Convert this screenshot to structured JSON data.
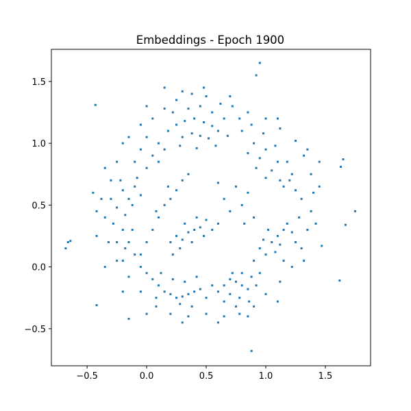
{
  "chart_data": {
    "type": "scatter",
    "title": "Embeddings - Epoch 1900",
    "xlabel": "",
    "ylabel": "",
    "xlim": [
      -0.8,
      1.88
    ],
    "ylim": [
      -0.8,
      1.76
    ],
    "xticks": [
      -0.5,
      0.0,
      0.5,
      1.0,
      1.5
    ],
    "xtick_labels": [
      "−0.5",
      "0.0",
      "0.5",
      "1.0",
      "1.5"
    ],
    "yticks": [
      -0.5,
      0.0,
      0.5,
      1.0,
      1.5
    ],
    "ytick_labels": [
      "−0.5",
      "0.0",
      "0.5",
      "1.0",
      "1.5"
    ],
    "grid": false,
    "legend": "none",
    "series": [
      {
        "color": "#1f77b4",
        "points": [
          [
            0.25,
            1.15
          ],
          [
            0.32,
            1.18
          ],
          [
            0.4,
            1.2
          ],
          [
            0.48,
            1.17
          ],
          [
            0.55,
            1.14
          ],
          [
            0.3,
            1.05
          ],
          [
            0.38,
            1.08
          ],
          [
            0.45,
            1.06
          ],
          [
            0.52,
            1.04
          ],
          [
            0.6,
            1.1
          ],
          [
            0.22,
            1.25
          ],
          [
            0.35,
            1.28
          ],
          [
            0.45,
            1.3
          ],
          [
            0.55,
            1.25
          ],
          [
            0.65,
            1.2
          ],
          [
            0.28,
            0.98
          ],
          [
            0.42,
            0.96
          ],
          [
            0.58,
            0.98
          ],
          [
            0.68,
            1.06
          ],
          [
            0.18,
            1.1
          ],
          [
            0.8,
            1.1
          ],
          [
            0.9,
            1.0
          ],
          [
            1.0,
            0.95
          ],
          [
            1.1,
            0.85
          ],
          [
            1.2,
            0.7
          ],
          [
            0.85,
            0.92
          ],
          [
            0.95,
            0.88
          ],
          [
            1.05,
            0.78
          ],
          [
            1.15,
            0.65
          ],
          [
            0.88,
            1.15
          ],
          [
            0.98,
            1.08
          ],
          [
            1.08,
            0.98
          ],
          [
            1.18,
            0.85
          ],
          [
            1.25,
            0.62
          ],
          [
            1.0,
            0.72
          ],
          [
            0.92,
            0.8
          ],
          [
            1.12,
            0.7
          ],
          [
            0.78,
            1.2
          ],
          [
            1.22,
            0.75
          ],
          [
            1.3,
            0.55
          ],
          [
            -0.2,
            0.62
          ],
          [
            -0.15,
            0.55
          ],
          [
            -0.1,
            0.65
          ],
          [
            -0.05,
            0.58
          ],
          [
            -0.25,
            0.48
          ],
          [
            -0.18,
            0.42
          ],
          [
            -0.12,
            0.5
          ],
          [
            -0.08,
            0.72
          ],
          [
            -0.22,
            0.7
          ],
          [
            -0.3,
            0.55
          ],
          [
            0.0,
            0.8
          ],
          [
            0.05,
            0.9
          ],
          [
            0.1,
            1.0
          ],
          [
            0.0,
            1.05
          ],
          [
            -0.05,
            0.95
          ],
          [
            0.1,
            0.85
          ],
          [
            0.15,
            0.95
          ],
          [
            -0.1,
            0.85
          ],
          [
            0.2,
            0.2
          ],
          [
            0.25,
            0.25
          ],
          [
            0.3,
            0.22
          ],
          [
            0.35,
            0.28
          ],
          [
            0.4,
            0.3
          ],
          [
            0.45,
            0.32
          ],
          [
            0.28,
            0.15
          ],
          [
            0.38,
            0.2
          ],
          [
            0.5,
            0.38
          ],
          [
            0.55,
            0.3
          ],
          [
            0.32,
            0.35
          ],
          [
            0.42,
            0.4
          ],
          [
            0.22,
            0.1
          ],
          [
            0.48,
            0.25
          ],
          [
            0.6,
            0.35
          ],
          [
            0.05,
            0.3
          ],
          [
            0.1,
            0.4
          ],
          [
            0.15,
            0.5
          ],
          [
            0.2,
            0.55
          ],
          [
            0.25,
            0.62
          ],
          [
            0.0,
            0.2
          ],
          [
            -0.05,
            0.1
          ],
          [
            0.08,
            0.45
          ],
          [
            0.3,
            0.7
          ],
          [
            0.35,
            0.75
          ],
          [
            0.18,
            0.65
          ],
          [
            0.0,
            -0.05
          ],
          [
            0.05,
            -0.1
          ],
          [
            0.1,
            -0.15
          ],
          [
            0.15,
            -0.2
          ],
          [
            0.2,
            -0.22
          ],
          [
            0.25,
            -0.25
          ],
          [
            0.3,
            -0.24
          ],
          [
            0.35,
            -0.22
          ],
          [
            0.4,
            -0.2
          ],
          [
            0.45,
            -0.18
          ],
          [
            0.12,
            -0.05
          ],
          [
            0.22,
            -0.1
          ],
          [
            0.32,
            -0.12
          ],
          [
            0.42,
            -0.08
          ],
          [
            0.08,
            -0.25
          ],
          [
            0.28,
            -0.3
          ],
          [
            0.38,
            -0.32
          ],
          [
            0.5,
            -0.25
          ],
          [
            -0.05,
            0.0
          ],
          [
            0.55,
            -0.15
          ],
          [
            0.6,
            -0.2
          ],
          [
            0.65,
            -0.15
          ],
          [
            0.7,
            -0.1
          ],
          [
            0.75,
            -0.12
          ],
          [
            0.8,
            -0.15
          ],
          [
            0.85,
            -0.18
          ],
          [
            0.72,
            -0.05
          ],
          [
            0.8,
            -0.05
          ],
          [
            0.88,
            -0.08
          ],
          [
            0.7,
            -0.22
          ],
          [
            0.78,
            -0.25
          ],
          [
            0.86,
            -0.28
          ],
          [
            0.92,
            -0.15
          ],
          [
            0.95,
            -0.05
          ],
          [
            0.65,
            -0.28
          ],
          [
            0.75,
            -0.32
          ],
          [
            0.9,
            0.05
          ],
          [
            1.0,
            0.1
          ],
          [
            1.05,
            0.2
          ],
          [
            1.1,
            0.25
          ],
          [
            1.15,
            0.3
          ],
          [
            1.08,
            0.12
          ],
          [
            1.12,
            0.18
          ],
          [
            1.18,
            0.35
          ],
          [
            1.22,
            0.28
          ],
          [
            0.98,
            0.22
          ],
          [
            1.02,
            0.3
          ],
          [
            1.25,
            0.2
          ],
          [
            1.15,
            0.05
          ],
          [
            1.28,
            0.4
          ],
          [
            0.95,
            0.15
          ],
          [
            -0.2,
            0.3
          ],
          [
            -0.15,
            0.2
          ],
          [
            -0.1,
            0.1
          ],
          [
            -0.2,
            0.05
          ],
          [
            -0.25,
            0.2
          ],
          [
            -0.28,
            0.35
          ],
          [
            -0.12,
            0.3
          ],
          [
            -0.18,
            0.15
          ],
          [
            0.8,
            0.5
          ],
          [
            0.85,
            0.6
          ],
          [
            0.9,
            0.4
          ],
          [
            0.75,
            0.65
          ],
          [
            0.7,
            0.45
          ],
          [
            0.82,
            0.35
          ],
          [
            0.65,
            0.55
          ],
          [
            0.6,
            0.68
          ],
          [
            -0.35,
            0.4
          ],
          [
            -0.38,
            0.55
          ],
          [
            -0.3,
            0.7
          ],
          [
            -0.25,
            0.85
          ],
          [
            -0.15,
            1.05
          ],
          [
            -0.05,
            1.15
          ],
          [
            0.05,
            1.2
          ],
          [
            0.15,
            1.28
          ],
          [
            0.25,
            1.35
          ],
          [
            0.38,
            1.4
          ],
          [
            0.5,
            1.38
          ],
          [
            0.62,
            1.32
          ],
          [
            0.72,
            1.3
          ],
          [
            0.85,
            1.25
          ],
          [
            1.0,
            1.2
          ],
          [
            1.12,
            1.12
          ],
          [
            1.25,
            1.02
          ],
          [
            1.32,
            0.9
          ],
          [
            1.38,
            0.75
          ],
          [
            1.4,
            0.6
          ],
          [
            1.38,
            0.45
          ],
          [
            1.35,
            0.3
          ],
          [
            1.3,
            0.15
          ],
          [
            1.22,
            0.0
          ],
          [
            1.12,
            -0.12
          ],
          [
            1.0,
            -0.22
          ],
          [
            0.9,
            -0.32
          ],
          [
            0.78,
            -0.38
          ],
          [
            0.65,
            -0.4
          ],
          [
            0.5,
            -0.38
          ],
          [
            0.35,
            -0.4
          ],
          [
            0.2,
            -0.38
          ],
          [
            0.08,
            -0.32
          ],
          [
            -0.05,
            -0.2
          ],
          [
            -0.15,
            -0.08
          ],
          [
            -0.25,
            0.05
          ],
          [
            -0.32,
            0.2
          ],
          [
            -0.42,
            0.45
          ],
          [
            -0.35,
            0.8
          ],
          [
            -0.2,
            1.0
          ],
          [
            0.0,
            1.3
          ],
          [
            0.3,
            1.42
          ],
          [
            0.7,
            1.38
          ],
          [
            1.1,
            1.2
          ],
          [
            1.35,
            0.95
          ],
          [
            1.45,
            0.65
          ],
          [
            1.42,
            0.35
          ],
          [
            1.32,
            0.05
          ],
          [
            1.1,
            -0.28
          ],
          [
            0.85,
            -0.4
          ],
          [
            0.6,
            -0.45
          ],
          [
            0.3,
            -0.45
          ],
          [
            0.0,
            -0.38
          ],
          [
            -0.2,
            -0.2
          ],
          [
            -0.35,
            0.0
          ],
          [
            -0.42,
            0.25
          ],
          [
            -0.45,
            0.6
          ],
          [
            0.15,
            1.45
          ],
          [
            0.48,
            1.45
          ],
          [
            0.92,
            1.55
          ],
          [
            0.95,
            1.65
          ],
          [
            -0.43,
            1.31
          ],
          [
            -0.66,
            0.2
          ],
          [
            -0.68,
            0.15
          ],
          [
            -0.64,
            0.21
          ],
          [
            1.75,
            0.45
          ],
          [
            1.65,
            0.87
          ],
          [
            1.63,
            0.81
          ],
          [
            1.67,
            0.34
          ],
          [
            1.62,
            -0.11
          ],
          [
            0.88,
            -0.68
          ],
          [
            -0.42,
            -0.31
          ],
          [
            -0.15,
            -0.42
          ],
          [
            1.45,
            0.85
          ],
          [
            1.47,
            0.17
          ]
        ]
      }
    ]
  }
}
